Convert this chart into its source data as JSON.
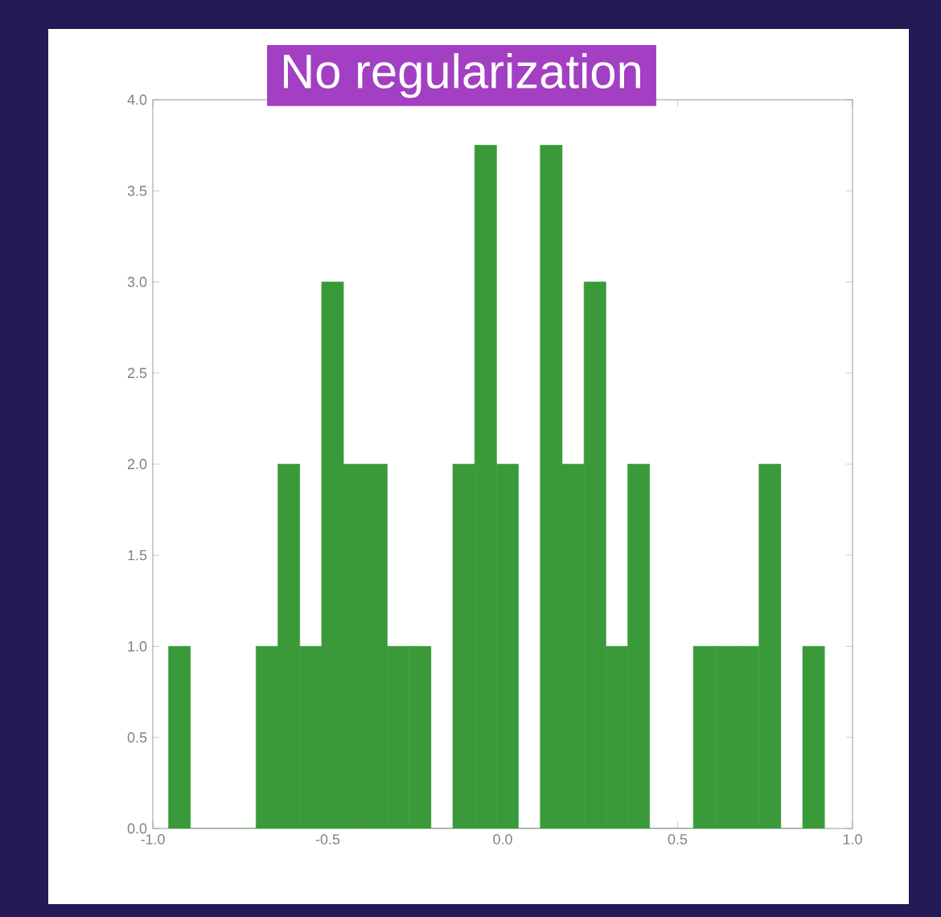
{
  "chart_data": {
    "type": "histogram",
    "title": "No regularization",
    "bins": [
      -0.955,
      -0.8925,
      -0.83,
      -0.7675,
      -0.705,
      -0.6425,
      -0.58,
      -0.5175,
      -0.455,
      -0.3925,
      -0.33,
      -0.2675,
      -0.205,
      -0.1425,
      -0.08,
      -0.0175,
      0.045,
      0.1075,
      0.17,
      0.2325,
      0.295,
      0.3575,
      0.42,
      0.4825,
      0.545,
      0.6075,
      0.67,
      0.7325,
      0.795,
      0.8575,
      0.92
    ],
    "values": [
      1,
      0,
      0,
      0,
      1,
      2,
      1,
      3,
      2,
      2,
      1,
      1,
      0,
      2,
      3.75,
      2,
      0,
      3.75,
      2,
      3,
      1,
      2,
      0,
      0,
      1,
      1,
      1,
      2,
      0,
      1
    ],
    "color": "#3a9a3a",
    "xlim": [
      -1.0,
      1.0
    ],
    "ylim": [
      0.0,
      4.0
    ],
    "xticks": [
      {
        "value": -1.0,
        "label": "-1.0"
      },
      {
        "value": -0.5,
        "label": "-0.5"
      },
      {
        "value": 0.0,
        "label": "0.0"
      },
      {
        "value": 0.5,
        "label": "0.5"
      },
      {
        "value": 1.0,
        "label": "1.0"
      }
    ],
    "yticks": [
      {
        "value": 0.0,
        "label": "0.0"
      },
      {
        "value": 0.5,
        "label": "0.5"
      },
      {
        "value": 1.0,
        "label": "1.0"
      },
      {
        "value": 1.5,
        "label": "1.5"
      },
      {
        "value": 2.0,
        "label": "2.0"
      },
      {
        "value": 2.5,
        "label": "2.5"
      },
      {
        "value": 3.0,
        "label": "3.0"
      },
      {
        "value": 3.5,
        "label": "3.5"
      },
      {
        "value": 4.0,
        "label": "4.0"
      }
    ]
  }
}
